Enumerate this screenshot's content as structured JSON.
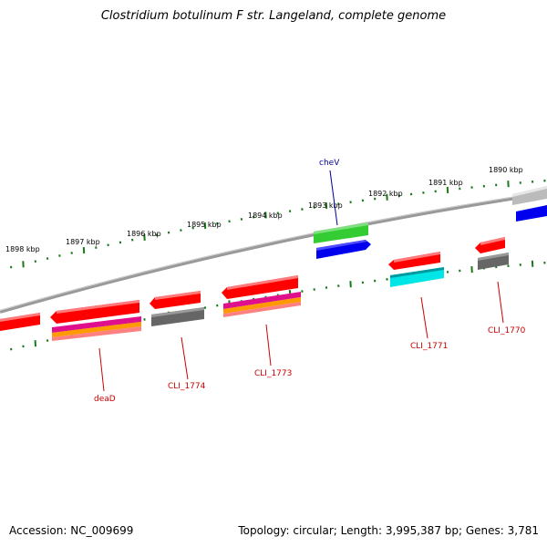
{
  "title": "Clostridium botulinum F str. Langeland, complete genome",
  "footer": {
    "accession": "Accession: NC_009699",
    "summary": "Topology: circular; Length: 3,995,387 bp; Genes: 3,781"
  },
  "colors": {
    "backbone": "#808080",
    "tick": "#1a7a1a",
    "gene_label_red": "#cc0000",
    "gene_label_blue": "#000099",
    "red": "#ff0000",
    "green": "#33cc33",
    "blue": "#0000ee",
    "gray": "#666666",
    "silver": "#bbbbbb",
    "cyan": "#00e5e5",
    "magenta": "#e0108c",
    "orange": "#ff9900",
    "pink": "#ff8080"
  },
  "ruler_labels": [
    "1898 kbp",
    "1897 kbp",
    "1896 kbp",
    "1895 kbp",
    "1894 kbp",
    "1893 kbp",
    "1892 kbp",
    "1891 kbp",
    "1890 kbp"
  ],
  "gene_labels": [
    "cheV",
    "deaD",
    "CLI_1774",
    "CLI_1773",
    "CLI_1771",
    "CLI_1770"
  ]
}
